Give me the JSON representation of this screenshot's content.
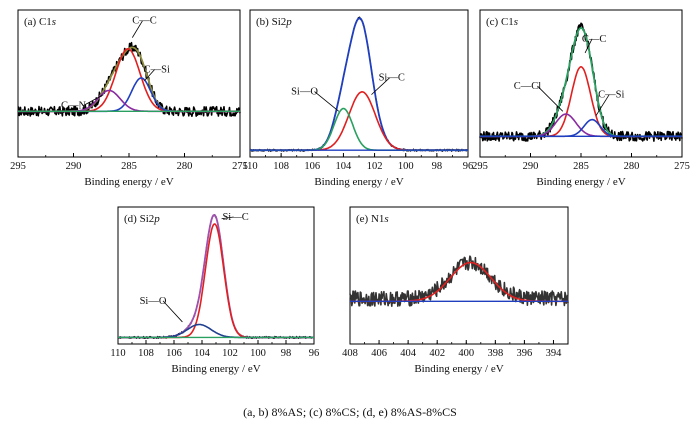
{
  "caption": "(a, b) 8%AS; (c) 8%CS; (d, e) 8%AS-8%CS",
  "chart_data": [
    {
      "type": "line",
      "title_prefix": "(a) C1",
      "title_italic": "s",
      "xlabel": "Binding energy / eV",
      "xlim": [
        295,
        275
      ],
      "xticks": [
        295,
        290,
        285,
        280,
        275
      ],
      "ylim": [
        0,
        1
      ],
      "series": [
        {
          "name": "raw",
          "color": "#000000",
          "kind": "raw",
          "center": 285.0,
          "peak": 0.76,
          "baseline": 0.3,
          "noise": 0.035
        },
        {
          "name": "envelope",
          "color": "#8c8a3c",
          "kind": "fit"
        },
        {
          "name": "C—C",
          "color": "#e02020",
          "kind": "gauss",
          "center": 285.1,
          "amp": 0.45,
          "sigma": 1.1,
          "baseline": 0.3
        },
        {
          "name": "C—Si",
          "color": "#1f3fbf",
          "kind": "gauss",
          "center": 283.9,
          "amp": 0.24,
          "sigma": 0.85,
          "baseline": 0.3
        },
        {
          "name": "C—N",
          "color": "#8a2aa0",
          "kind": "gauss",
          "center": 286.8,
          "amp": 0.15,
          "sigma": 1.0,
          "baseline": 0.3
        },
        {
          "name": "base",
          "color": "#2aa060",
          "kind": "base",
          "baseline": 0.3
        }
      ],
      "annotations": [
        {
          "text": "C—C",
          "x": 283.6,
          "y": 0.93,
          "to_x": 284.7,
          "to_y": 0.83
        },
        {
          "text": "C—Si",
          "x": 282.5,
          "y": 0.58,
          "to_x": 283.6,
          "to_y": 0.52
        },
        {
          "text": "C—N",
          "x": 290.0,
          "y": 0.32,
          "to_x": 287.3,
          "to_y": 0.42
        }
      ]
    },
    {
      "type": "line",
      "title_prefix": "(b) Si2",
      "title_italic": "p",
      "xlabel": "Binding energy / eV",
      "xlim": [
        110,
        96
      ],
      "xticks": [
        110,
        108,
        106,
        104,
        102,
        100,
        98,
        96
      ],
      "ylim": [
        0,
        1
      ],
      "series": [
        {
          "name": "raw",
          "color": "#000000",
          "kind": "raw",
          "center": 102.9,
          "peak": 0.97,
          "baseline": 0.02,
          "noise": 0.008
        },
        {
          "name": "envelope",
          "color": "#1f3fbf",
          "kind": "fit"
        },
        {
          "name": "Si—C",
          "color": "#e02020",
          "kind": "gauss",
          "center": 102.8,
          "amp": 0.42,
          "sigma": 0.85,
          "baseline": 0.02
        },
        {
          "name": "Si—O",
          "color": "#2aa060",
          "kind": "gauss",
          "center": 104.0,
          "amp": 0.3,
          "sigma": 0.6,
          "baseline": 0.02
        },
        {
          "name": "main",
          "color": "#1f3fbf",
          "kind": "gauss-hidden",
          "center": 102.9,
          "amp": 0.55,
          "sigma": 0.62,
          "baseline": 0.02
        },
        {
          "name": "base",
          "color": "#1f3fbf",
          "kind": "base",
          "baseline": 0.02
        }
      ],
      "annotations": [
        {
          "text": "Si—C",
          "x": 100.9,
          "y": 0.52,
          "to_x": 102.2,
          "to_y": 0.42
        },
        {
          "text": "Si—O",
          "x": 106.5,
          "y": 0.42,
          "to_x": 104.3,
          "to_y": 0.3
        }
      ]
    },
    {
      "type": "line",
      "title_prefix": "(c) C1",
      "title_italic": "s",
      "xlabel": "Binding energy / eV",
      "xlim": [
        295,
        275
      ],
      "xticks": [
        295,
        290,
        285,
        280,
        275
      ],
      "ylim": [
        0,
        1
      ],
      "series": [
        {
          "name": "raw",
          "color": "#000000",
          "kind": "raw",
          "center": 285.0,
          "peak": 0.9,
          "baseline": 0.12,
          "noise": 0.035
        },
        {
          "name": "envelope",
          "color": "#2aa060",
          "kind": "fit"
        },
        {
          "name": "C—C",
          "color": "#e02020",
          "kind": "gauss",
          "center": 285.0,
          "amp": 0.5,
          "sigma": 0.95,
          "baseline": 0.12
        },
        {
          "name": "C—Cl",
          "color": "#8a2aa0",
          "kind": "gauss",
          "center": 286.5,
          "amp": 0.16,
          "sigma": 1.0,
          "baseline": 0.12
        },
        {
          "name": "C—Si",
          "color": "#1f3fbf",
          "kind": "gauss",
          "center": 283.9,
          "amp": 0.12,
          "sigma": 0.8,
          "baseline": 0.12
        },
        {
          "name": "base",
          "color": "#1f3fbf",
          "kind": "base",
          "baseline": 0.12
        }
      ],
      "annotations": [
        {
          "text": "C—C",
          "x": 283.7,
          "y": 0.8,
          "to_x": 284.6,
          "to_y": 0.72
        },
        {
          "text": "C—Cl",
          "x": 290.3,
          "y": 0.46,
          "to_x": 286.8,
          "to_y": 0.3
        },
        {
          "text": "C—Si",
          "x": 282.0,
          "y": 0.4,
          "to_x": 283.5,
          "to_y": 0.27
        }
      ]
    },
    {
      "type": "line",
      "title_prefix": "(d) Si2",
      "title_italic": "p",
      "xlabel": "Binding energy / eV",
      "xlim": [
        110,
        96
      ],
      "xticks": [
        110,
        108,
        106,
        104,
        102,
        100,
        98,
        96
      ],
      "ylim": [
        0,
        1
      ],
      "series": [
        {
          "name": "raw",
          "color": "#000000",
          "kind": "raw",
          "center": 103.0,
          "peak": 0.97,
          "baseline": 0.02,
          "noise": 0.008
        },
        {
          "name": "envelope",
          "color": "#a050b0",
          "kind": "fit"
        },
        {
          "name": "Si—C",
          "color": "#e02020",
          "kind": "gauss",
          "center": 103.1,
          "amp": 0.88,
          "sigma": 0.65,
          "baseline": 0.02
        },
        {
          "name": "Si—O",
          "color": "#1f3f8f",
          "kind": "gauss",
          "center": 104.2,
          "amp": 0.1,
          "sigma": 0.85,
          "baseline": 0.02
        },
        {
          "name": "base",
          "color": "#2aa060",
          "kind": "base",
          "baseline": 0.02
        }
      ],
      "annotations": [
        {
          "text": "Si—C",
          "x": 101.6,
          "y": 0.93,
          "to_x": 102.6,
          "to_y": 0.94
        },
        {
          "text": "Si—O",
          "x": 107.5,
          "y": 0.28,
          "to_x": 105.4,
          "to_y": 0.14
        }
      ]
    },
    {
      "type": "line",
      "title_prefix": "(e) N1",
      "title_italic": "s",
      "xlabel": "Binding energy / eV",
      "xlim": [
        408,
        393
      ],
      "xticks": [
        408,
        406,
        404,
        402,
        400,
        398,
        396,
        394
      ],
      "ylim": [
        0,
        1
      ],
      "series": [
        {
          "name": "raw",
          "color": "#333333",
          "kind": "raw",
          "center": 399.6,
          "peak": 0.6,
          "baseline": 0.32,
          "noise": 0.06
        },
        {
          "name": "fit",
          "color": "#e02020",
          "kind": "gauss",
          "center": 399.7,
          "amp": 0.3,
          "sigma": 1.4,
          "baseline": 0.3
        },
        {
          "name": "base",
          "color": "#1f3fbf",
          "kind": "base",
          "baseline": 0.3
        }
      ],
      "annotations": []
    }
  ]
}
